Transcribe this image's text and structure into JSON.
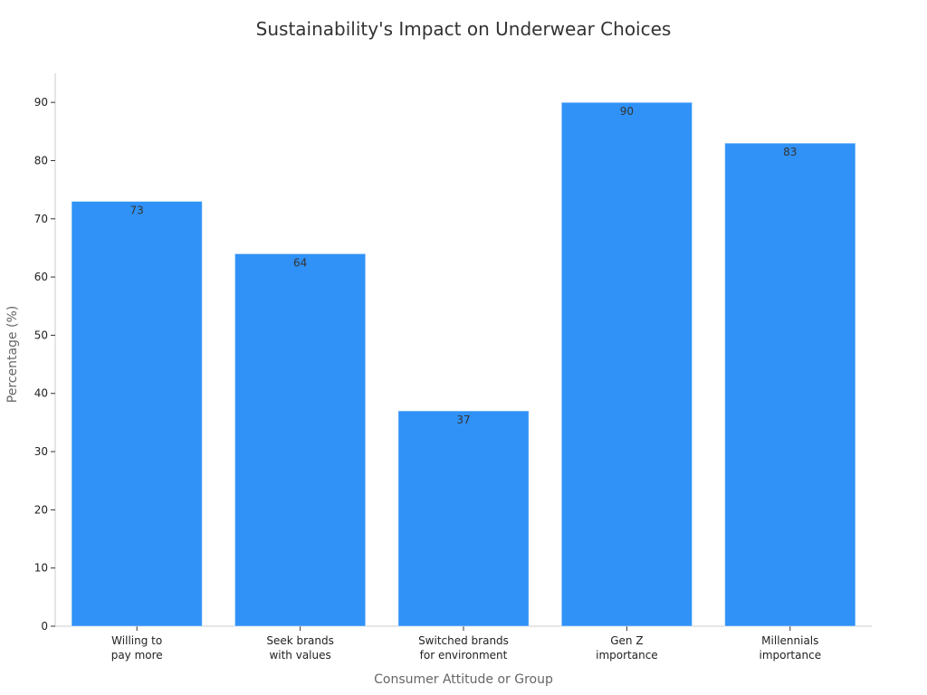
{
  "chart_data": {
    "type": "bar",
    "title": "Sustainability's Impact on Underwear Choices",
    "xlabel": "Consumer Attitude or Group",
    "ylabel": "Percentage (%)",
    "categories": [
      [
        "Willing to",
        "pay more"
      ],
      [
        "Seek brands",
        "with values"
      ],
      [
        "Switched brands",
        "for environment"
      ],
      [
        "Gen Z",
        "importance"
      ],
      [
        "Millennials",
        "importance"
      ]
    ],
    "values": [
      73,
      64,
      37,
      90,
      83
    ],
    "ylim": [
      0,
      95
    ],
    "yticks": [
      0,
      10,
      20,
      30,
      40,
      50,
      60,
      70,
      80,
      90
    ],
    "bar_color": "#3092F7",
    "grid": false,
    "legend": "none"
  }
}
